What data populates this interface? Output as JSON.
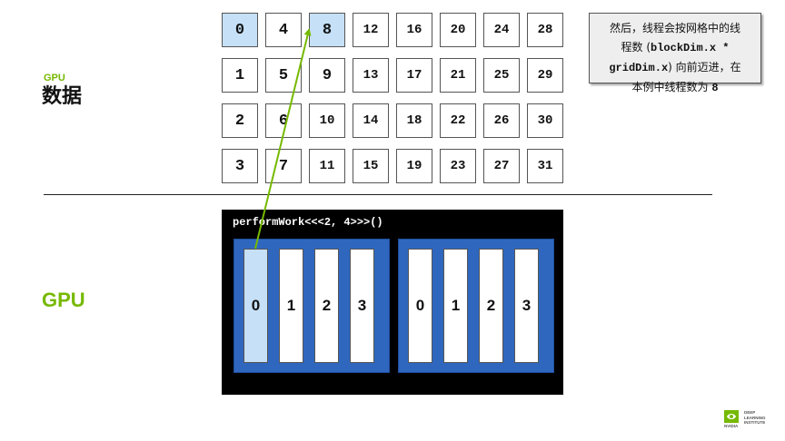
{
  "labels": {
    "gpu_small": "GPU",
    "data": "数据",
    "gpu": "GPU"
  },
  "grid": {
    "columns": [
      [
        "0",
        "1",
        "2",
        "3"
      ],
      [
        "4",
        "5",
        "6",
        "7"
      ],
      [
        "8",
        "9",
        "10",
        "11"
      ],
      [
        "12",
        "13",
        "14",
        "15"
      ],
      [
        "16",
        "17",
        "18",
        "19"
      ],
      [
        "20",
        "21",
        "22",
        "23"
      ],
      [
        "24",
        "25",
        "26",
        "27"
      ],
      [
        "28",
        "29",
        "30",
        "31"
      ]
    ],
    "highlighted": [
      "0",
      "8"
    ]
  },
  "note": {
    "line1": "然后，线程会按网格中的线",
    "line2_pre": "程数 (",
    "line2_code": "blockDim.x *",
    "line3_code": "gridDim.x",
    "line3_post": ") 向前迈进，在",
    "line4_pre": "本例中线程数为 ",
    "line4_code": "8"
  },
  "kernel": {
    "call": "performWork<<<2, 4>>>()",
    "blocks": [
      {
        "threads": [
          "0",
          "1",
          "2",
          "3"
        ]
      },
      {
        "threads": [
          "0",
          "1",
          "2",
          "3"
        ]
      }
    ],
    "highlighted_thread": {
      "block": 0,
      "thread": 0
    }
  },
  "colors": {
    "accent": "#76b900",
    "highlight": "#c5e0f7",
    "block": "#2f67bf"
  },
  "logo": {
    "line1": "DEEP",
    "line2": "LEARNING",
    "line3": "INSTITUTE",
    "brand": "NVIDIA"
  }
}
